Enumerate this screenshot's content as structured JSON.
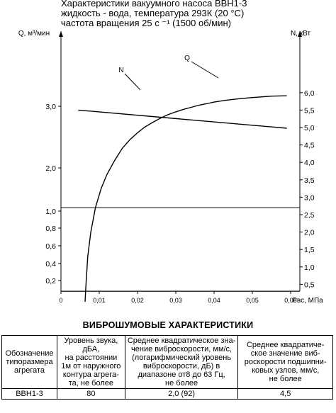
{
  "title_lines": [
    "Характеристики вакуумного насоса ВВН1-3",
    "жидкость - вода, температура 293К (20 °С)",
    "частота вращения 25 с ⁻¹ (1500 об/мин)"
  ],
  "chart_data": {
    "type": "line",
    "xlabel": "Рвс, МПа",
    "ylabel_left": "Q, м³/мин",
    "ylabel_right": "N, кВт",
    "xlim": [
      0,
      0.06
    ],
    "x_ticks": [
      "0",
      "0,01",
      "0,02",
      "0,03",
      "0,04",
      "0,05",
      "0,06"
    ],
    "x_tick_values": [
      0,
      0.01,
      0.02,
      0.03,
      0.04,
      0.05,
      0.06
    ],
    "y_left_ticks": [
      "0,2",
      "0,4",
      "0,6",
      "0,8",
      "1,0",
      "2,0",
      "3,0"
    ],
    "y_right_ticks": [
      "0,5",
      "1,0",
      "1,5",
      "2,0",
      "2,5",
      "3,0",
      "3,5",
      "4,0",
      "4,5",
      "5,0",
      "5,5",
      "6,0"
    ],
    "y_right_tick_values": [
      0.5,
      1.0,
      1.5,
      2.0,
      2.5,
      3.0,
      3.5,
      4.0,
      4.5,
      5.0,
      5.5,
      6.0
    ],
    "ylim_right": [
      0,
      6.5
    ],
    "grid": false,
    "reference_lines_right_axis": [
      0.3,
      2.7
    ],
    "series": [
      {
        "name": "Q",
        "axis": "left",
        "x": [
          0.0063,
          0.0066,
          0.007,
          0.0078,
          0.009,
          0.0105,
          0.012,
          0.014,
          0.016,
          0.018,
          0.02,
          0.022,
          0.024,
          0.026,
          0.028,
          0.03,
          0.032,
          0.034,
          0.036,
          0.038,
          0.04,
          0.043,
          0.046,
          0.05,
          0.055,
          0.059
        ],
        "y_right_scale": [
          0.0,
          0.6,
          1.3,
          2.0,
          2.7,
          3.25,
          3.65,
          4.05,
          4.4,
          4.65,
          4.85,
          5.02,
          5.15,
          5.27,
          5.37,
          5.45,
          5.52,
          5.58,
          5.64,
          5.68,
          5.73,
          5.78,
          5.82,
          5.86,
          5.9,
          5.91
        ]
      },
      {
        "name": "N",
        "axis": "right",
        "x": [
          0.0045,
          0.059
        ],
        "y": [
          5.5,
          4.98
        ]
      }
    ],
    "annotations": [
      "N",
      "Q"
    ]
  },
  "table": {
    "title": "ВИБРОШУМОВЫЕ ХАРАКТЕРИСТИКИ",
    "headers": [
      "Обозначение\nтипоразмера\nагрегата",
      "Уровень звука,\nдБА,\nна расстоянии\n1м от наружного\nконтура агрега-\nта, не более",
      "Среднее квадратическое зна-\nчение виброскорости, мм/с,\n(логарифмический уровень\nвиброскорости, дБ) в\nдиапазоне от8 до 63 Гц,\nне более",
      "Среднее квадратиче-\nское значение виб-\nрoскорости подшипни-\nковых узлов, мм/с,\nне более"
    ],
    "row": [
      "ВВН1-3",
      "80",
      "2,0 (92)",
      "4,5"
    ]
  }
}
